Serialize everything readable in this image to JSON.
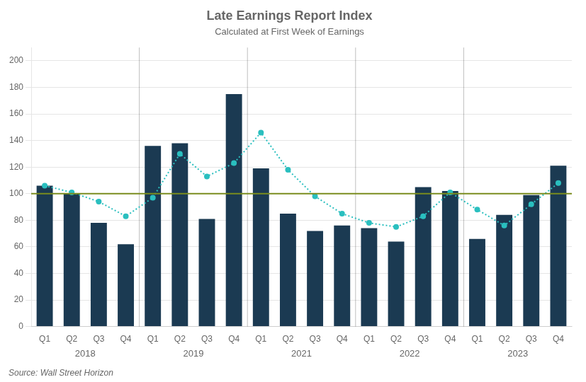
{
  "chart_data": {
    "type": "bar",
    "title": "Late Earnings Report Index",
    "subtitle": "Calculated at First Week of Earnings",
    "annotations": [
      "Source: Wall Street Horizon"
    ],
    "categories": [
      "Q1",
      "Q2",
      "Q3",
      "Q4",
      "Q1",
      "Q2",
      "Q3",
      "Q4",
      "Q1",
      "Q2",
      "Q3",
      "Q4",
      "Q1",
      "Q2",
      "Q3",
      "Q4",
      "Q1",
      "Q2",
      "Q3",
      "Q4"
    ],
    "groups": [
      {
        "label": "2018",
        "count": 4
      },
      {
        "label": "2019",
        "count": 4
      },
      {
        "label": "2021",
        "count": 4
      },
      {
        "label": "2022",
        "count": 4
      },
      {
        "label": "2023",
        "count": 4
      }
    ],
    "series": [
      {
        "type": "bar",
        "color": "#1b3a52",
        "values": [
          106,
          100,
          78,
          62,
          136,
          138,
          81,
          175,
          119,
          85,
          72,
          76,
          74,
          64,
          105,
          102,
          66,
          84,
          99,
          121
        ]
      },
      {
        "type": "line",
        "color": "#2abfbf",
        "line_style": "dotted",
        "marker": "circle",
        "values": [
          106,
          101,
          94,
          83,
          97,
          130,
          113,
          123,
          146,
          118,
          98,
          85,
          78,
          75,
          83,
          101,
          88,
          76,
          92,
          108
        ]
      }
    ],
    "hlines": [
      {
        "value": 100,
        "color": "#7a8c1e"
      }
    ],
    "ylim": [
      0,
      210
    ],
    "yticks": [
      0,
      20,
      40,
      60,
      80,
      100,
      120,
      140,
      160,
      180,
      200
    ],
    "grid": true
  }
}
